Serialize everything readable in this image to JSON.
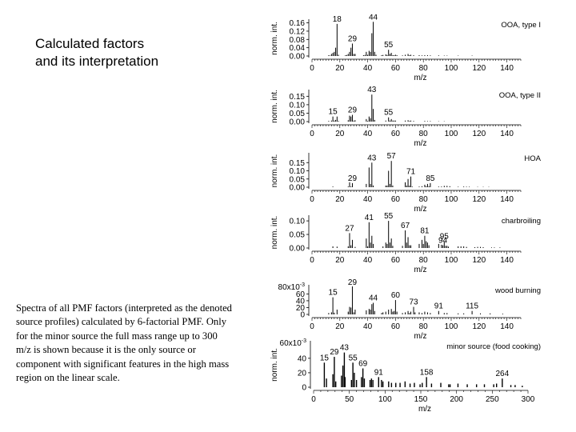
{
  "title": {
    "line1": "Calculated factors",
    "line2": "and its interpretation"
  },
  "caption": {
    "lines": [
      "Spectra of all PMF factors (interpreted as the denoted",
      "source profiles) calculated by 6-factorial PMF. Only",
      "for the minor source the full mass range up to 300",
      "m/z is shown because it is the only source or",
      "component with significant features in the high mass",
      "region on the linear scale."
    ]
  },
  "chart_data": [
    {
      "type": "bar",
      "title": "OOA, type I",
      "ylabel": "norm. int.",
      "xlabel": "m/z",
      "xlim": [
        0,
        150
      ],
      "xticks": [
        0,
        20,
        40,
        60,
        80,
        100,
        120,
        140
      ],
      "ylim": [
        0,
        0.17
      ],
      "yticks": [
        "0.16",
        "0.12",
        "0.08",
        "0.04",
        "0.00"
      ],
      "yticks_values": [
        0.16,
        0.12,
        0.08,
        0.04,
        0.0
      ],
      "peaks": [
        [
          12,
          0.004
        ],
        [
          13,
          0.002
        ],
        [
          14,
          0.01
        ],
        [
          15,
          0.015
        ],
        [
          16,
          0.02
        ],
        [
          17,
          0.04
        ],
        [
          18,
          0.155
        ],
        [
          19,
          0.006
        ],
        [
          24,
          0.004
        ],
        [
          25,
          0.005
        ],
        [
          26,
          0.01
        ],
        [
          27,
          0.02
        ],
        [
          28,
          0.04
        ],
        [
          29,
          0.06
        ],
        [
          30,
          0.01
        ],
        [
          31,
          0.01
        ],
        [
          37,
          0.004
        ],
        [
          38,
          0.005
        ],
        [
          39,
          0.02
        ],
        [
          40,
          0.006
        ],
        [
          41,
          0.025
        ],
        [
          42,
          0.02
        ],
        [
          43,
          0.11
        ],
        [
          44,
          0.165
        ],
        [
          45,
          0.02
        ],
        [
          46,
          0.006
        ],
        [
          50,
          0.004
        ],
        [
          51,
          0.005
        ],
        [
          53,
          0.008
        ],
        [
          54,
          0.005
        ],
        [
          55,
          0.03
        ],
        [
          56,
          0.01
        ],
        [
          57,
          0.015
        ],
        [
          58,
          0.004
        ],
        [
          59,
          0.004
        ],
        [
          60,
          0.006
        ],
        [
          61,
          0.004
        ],
        [
          65,
          0.003
        ],
        [
          67,
          0.006
        ],
        [
          69,
          0.01
        ],
        [
          70,
          0.004
        ],
        [
          71,
          0.006
        ],
        [
          73,
          0.004
        ],
        [
          77,
          0.004
        ],
        [
          79,
          0.003
        ],
        [
          81,
          0.004
        ],
        [
          83,
          0.004
        ],
        [
          85,
          0.003
        ],
        [
          91,
          0.003
        ],
        [
          95,
          0.002
        ],
        [
          97,
          0.002
        ],
        [
          105,
          0.002
        ],
        [
          115,
          0.002
        ]
      ],
      "peak_labels": [
        {
          "x": 18,
          "text": "18"
        },
        {
          "x": 29,
          "text": "29"
        },
        {
          "x": 44,
          "text": "44"
        },
        {
          "x": 55,
          "text": "55"
        }
      ]
    },
    {
      "type": "bar",
      "title": "OOA, type II",
      "ylabel": "norm. int.",
      "xlabel": "m/z",
      "xlim": [
        0,
        150
      ],
      "xticks": [
        0,
        20,
        40,
        60,
        80,
        100,
        120,
        140
      ],
      "ylim": [
        0,
        0.18
      ],
      "yticks": [
        "0.15",
        "0.10",
        "0.05",
        "0.00"
      ],
      "yticks_values": [
        0.15,
        0.1,
        0.05,
        0.0
      ],
      "peaks": [
        [
          12,
          0.004
        ],
        [
          14,
          0.006
        ],
        [
          15,
          0.03
        ],
        [
          16,
          0.006
        ],
        [
          17,
          0.01
        ],
        [
          18,
          0.03
        ],
        [
          19,
          0.004
        ],
        [
          26,
          0.008
        ],
        [
          27,
          0.035
        ],
        [
          28,
          0.03
        ],
        [
          29,
          0.04
        ],
        [
          30,
          0.006
        ],
        [
          31,
          0.008
        ],
        [
          39,
          0.015
        ],
        [
          40,
          0.004
        ],
        [
          41,
          0.03
        ],
        [
          42,
          0.02
        ],
        [
          43,
          0.16
        ],
        [
          44,
          0.075
        ],
        [
          45,
          0.01
        ],
        [
          53,
          0.006
        ],
        [
          55,
          0.025
        ],
        [
          56,
          0.006
        ],
        [
          57,
          0.015
        ],
        [
          58,
          0.006
        ],
        [
          59,
          0.006
        ],
        [
          60,
          0.006
        ],
        [
          67,
          0.006
        ],
        [
          69,
          0.008
        ],
        [
          70,
          0.004
        ],
        [
          71,
          0.006
        ],
        [
          73,
          0.004
        ],
        [
          81,
          0.004
        ],
        [
          83,
          0.003
        ],
        [
          85,
          0.003
        ],
        [
          91,
          0.002
        ],
        [
          95,
          0.002
        ]
      ],
      "peak_labels": [
        {
          "x": 15,
          "text": "15"
        },
        {
          "x": 29,
          "text": "29"
        },
        {
          "x": 43,
          "text": "43"
        },
        {
          "x": 55,
          "text": "55"
        }
      ]
    },
    {
      "type": "bar",
      "title": "HOA",
      "ylabel": "norm. int.",
      "xlabel": "m/z",
      "xlim": [
        0,
        150
      ],
      "xticks": [
        0,
        20,
        40,
        60,
        80,
        100,
        120,
        140
      ],
      "ylim": [
        0,
        0.2
      ],
      "yticks": [
        "0.15",
        "0.10",
        "0.05",
        "0.00"
      ],
      "yticks_values": [
        0.15,
        0.1,
        0.05,
        0.0
      ],
      "peaks": [
        [
          15,
          0.004
        ],
        [
          26,
          0.004
        ],
        [
          27,
          0.03
        ],
        [
          28,
          0.004
        ],
        [
          29,
          0.025
        ],
        [
          39,
          0.02
        ],
        [
          41,
          0.12
        ],
        [
          42,
          0.02
        ],
        [
          43,
          0.15
        ],
        [
          44,
          0.01
        ],
        [
          53,
          0.01
        ],
        [
          54,
          0.01
        ],
        [
          55,
          0.1
        ],
        [
          56,
          0.02
        ],
        [
          57,
          0.16
        ],
        [
          58,
          0.01
        ],
        [
          67,
          0.03
        ],
        [
          68,
          0.01
        ],
        [
          69,
          0.05
        ],
        [
          70,
          0.01
        ],
        [
          71,
          0.065
        ],
        [
          72,
          0.004
        ],
        [
          77,
          0.004
        ],
        [
          79,
          0.006
        ],
        [
          81,
          0.015
        ],
        [
          82,
          0.006
        ],
        [
          83,
          0.02
        ],
        [
          84,
          0.006
        ],
        [
          85,
          0.025
        ],
        [
          91,
          0.004
        ],
        [
          93,
          0.004
        ],
        [
          95,
          0.008
        ],
        [
          97,
          0.008
        ],
        [
          99,
          0.006
        ],
        [
          105,
          0.003
        ],
        [
          109,
          0.004
        ],
        [
          111,
          0.003
        ],
        [
          113,
          0.003
        ],
        [
          119,
          0.002
        ],
        [
          123,
          0.002
        ],
        [
          127,
          0.002
        ]
      ],
      "peak_labels": [
        {
          "x": 29,
          "text": "29"
        },
        {
          "x": 43,
          "text": "43"
        },
        {
          "x": 57,
          "text": "57"
        },
        {
          "x": 71,
          "text": "71"
        },
        {
          "x": 85,
          "text": "85"
        }
      ]
    },
    {
      "type": "bar",
      "title": "charbroiling",
      "ylabel": "norm. int.",
      "xlabel": "m/z",
      "xlim": [
        0,
        150
      ],
      "xticks": [
        0,
        20,
        40,
        60,
        80,
        100,
        120,
        140
      ],
      "ylim": [
        0,
        0.115
      ],
      "yticks": [
        "0.10",
        "0.05",
        "0.00"
      ],
      "yticks_values": [
        0.1,
        0.05,
        0.0
      ],
      "peaks": [
        [
          15,
          0.006
        ],
        [
          18,
          0.005
        ],
        [
          26,
          0.006
        ],
        [
          27,
          0.055
        ],
        [
          28,
          0.01
        ],
        [
          29,
          0.03
        ],
        [
          31,
          0.004
        ],
        [
          39,
          0.035
        ],
        [
          40,
          0.006
        ],
        [
          41,
          0.095
        ],
        [
          42,
          0.02
        ],
        [
          43,
          0.045
        ],
        [
          44,
          0.015
        ],
        [
          51,
          0.006
        ],
        [
          53,
          0.02
        ],
        [
          54,
          0.015
        ],
        [
          55,
          0.1
        ],
        [
          56,
          0.02
        ],
        [
          57,
          0.035
        ],
        [
          58,
          0.008
        ],
        [
          65,
          0.008
        ],
        [
          67,
          0.065
        ],
        [
          68,
          0.02
        ],
        [
          69,
          0.04
        ],
        [
          70,
          0.01
        ],
        [
          71,
          0.01
        ],
        [
          77,
          0.015
        ],
        [
          79,
          0.03
        ],
        [
          80,
          0.015
        ],
        [
          81,
          0.045
        ],
        [
          82,
          0.025
        ],
        [
          83,
          0.02
        ],
        [
          84,
          0.01
        ],
        [
          91,
          0.015
        ],
        [
          93,
          0.012
        ],
        [
          94,
          0.01
        ],
        [
          95,
          0.025
        ],
        [
          96,
          0.008
        ],
        [
          97,
          0.008
        ],
        [
          98,
          0.005
        ],
        [
          105,
          0.006
        ],
        [
          107,
          0.006
        ],
        [
          109,
          0.006
        ],
        [
          111,
          0.004
        ],
        [
          117,
          0.003
        ],
        [
          119,
          0.004
        ],
        [
          121,
          0.004
        ],
        [
          123,
          0.003
        ],
        [
          129,
          0.002
        ],
        [
          131,
          0.002
        ],
        [
          135,
          0.002
        ]
      ],
      "peak_labels": [
        {
          "x": 27,
          "text": "27"
        },
        {
          "x": 41,
          "text": "41"
        },
        {
          "x": 55,
          "text": "55"
        },
        {
          "x": 67,
          "text": "67"
        },
        {
          "x": 81,
          "text": "81"
        },
        {
          "x": 94,
          "text": "94"
        },
        {
          "x": 95,
          "text": "95"
        }
      ]
    },
    {
      "type": "bar",
      "title": "wood burning",
      "ylabel": "",
      "xlabel": "m/z",
      "xlim": [
        0,
        150
      ],
      "xticks": [
        0,
        20,
        40,
        60,
        80,
        100,
        120,
        140
      ],
      "ylim": [
        0,
        82
      ],
      "ytop_label": "80x10",
      "ytop_exponent": "-3",
      "yticks": [
        "60",
        "40",
        "20",
        "0"
      ],
      "yticks_values": [
        60,
        40,
        20,
        0
      ],
      "peaks": [
        [
          12,
          4
        ],
        [
          14,
          6
        ],
        [
          15,
          50
        ],
        [
          16,
          5
        ],
        [
          18,
          14
        ],
        [
          26,
          8
        ],
        [
          27,
          22
        ],
        [
          28,
          20
        ],
        [
          29,
          82
        ],
        [
          30,
          6
        ],
        [
          31,
          14
        ],
        [
          39,
          12
        ],
        [
          41,
          16
        ],
        [
          42,
          14
        ],
        [
          43,
          30
        ],
        [
          44,
          34
        ],
        [
          45,
          10
        ],
        [
          50,
          4
        ],
        [
          51,
          6
        ],
        [
          53,
          8
        ],
        [
          55,
          14
        ],
        [
          57,
          16
        ],
        [
          58,
          8
        ],
        [
          59,
          10
        ],
        [
          60,
          42
        ],
        [
          61,
          8
        ],
        [
          65,
          4
        ],
        [
          67,
          6
        ],
        [
          69,
          10
        ],
        [
          70,
          4
        ],
        [
          71,
          8
        ],
        [
          73,
          22
        ],
        [
          74,
          6
        ],
        [
          77,
          6
        ],
        [
          79,
          4
        ],
        [
          81,
          8
        ],
        [
          83,
          6
        ],
        [
          85,
          4
        ],
        [
          91,
          10
        ],
        [
          95,
          4
        ],
        [
          97,
          4
        ],
        [
          105,
          3
        ],
        [
          109,
          3
        ],
        [
          115,
          10
        ],
        [
          121,
          3
        ],
        [
          128,
          3
        ],
        [
          137,
          2
        ]
      ],
      "peak_labels": [
        {
          "x": 15,
          "text": "15"
        },
        {
          "x": 29,
          "text": "29"
        },
        {
          "x": 44,
          "text": "44"
        },
        {
          "x": 60,
          "text": "60"
        },
        {
          "x": 73,
          "text": "73"
        },
        {
          "x": 91,
          "text": "91"
        },
        {
          "x": 115,
          "text": "115"
        }
      ]
    },
    {
      "type": "bar",
      "title": "minor source (food cooking)",
      "ylabel": "norm. int.",
      "xlabel": "m/z",
      "xlim": [
        0,
        300
      ],
      "xticks": [
        0,
        50,
        100,
        150,
        200,
        250,
        300
      ],
      "ylim": [
        0,
        62
      ],
      "ytop_label": "60x10",
      "ytop_exponent": "-3",
      "yticks": [
        "40",
        "20",
        "0"
      ],
      "yticks_values": [
        40,
        20,
        0
      ],
      "peaks": [
        [
          15,
          34
        ],
        [
          18,
          12
        ],
        [
          27,
          18
        ],
        [
          29,
          42
        ],
        [
          31,
          8
        ],
        [
          39,
          16
        ],
        [
          41,
          30
        ],
        [
          43,
          48
        ],
        [
          44,
          14
        ],
        [
          53,
          10
        ],
        [
          55,
          34
        ],
        [
          57,
          20
        ],
        [
          60,
          10
        ],
        [
          67,
          14
        ],
        [
          69,
          26
        ],
        [
          71,
          12
        ],
        [
          79,
          10
        ],
        [
          81,
          12
        ],
        [
          83,
          10
        ],
        [
          91,
          14
        ],
        [
          95,
          10
        ],
        [
          97,
          8
        ],
        [
          105,
          8
        ],
        [
          109,
          6
        ],
        [
          115,
          6
        ],
        [
          121,
          6
        ],
        [
          128,
          8
        ],
        [
          135,
          5
        ],
        [
          141,
          6
        ],
        [
          149,
          4
        ],
        [
          152,
          6
        ],
        [
          158,
          14
        ],
        [
          165,
          5
        ],
        [
          178,
          6
        ],
        [
          189,
          4
        ],
        [
          191,
          4
        ],
        [
          202,
          5
        ],
        [
          215,
          4
        ],
        [
          228,
          4
        ],
        [
          239,
          4
        ],
        [
          252,
          4
        ],
        [
          256,
          5
        ],
        [
          264,
          12
        ],
        [
          276,
          3
        ],
        [
          282,
          3
        ],
        [
          292,
          2
        ]
      ],
      "peak_labels": [
        {
          "x": 15,
          "text": "15"
        },
        {
          "x": 29,
          "text": "29"
        },
        {
          "x": 43,
          "text": "43"
        },
        {
          "x": 55,
          "text": "55"
        },
        {
          "x": 69,
          "text": "69"
        },
        {
          "x": 91,
          "text": "91"
        },
        {
          "x": 158,
          "text": "158"
        },
        {
          "x": 264,
          "text": "264"
        }
      ]
    }
  ]
}
